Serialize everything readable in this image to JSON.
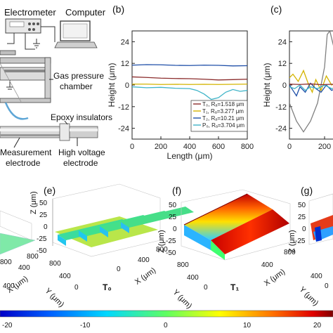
{
  "schematic": {
    "electrometer": "Electrometer",
    "computer": "Computer",
    "gas_chamber_line1": "Gas pressure",
    "gas_chamber_line2": "chamber",
    "epoxy": "Epoxy insulators",
    "measurement_line1": "Measurement",
    "measurement_line2": "electrode",
    "hv_line1": "High voltage",
    "hv_line2": "electrode"
  },
  "panel_labels": {
    "b": "(b)",
    "c": "(c)",
    "e": "(e)",
    "f": "(f)",
    "g": "(g)"
  },
  "chart_data": [
    {
      "type": "line",
      "panel": "(b)",
      "xlabel": "Length (μm)",
      "ylabel": "Height (μm)",
      "xlim": [
        0,
        800
      ],
      "ylim": [
        -30,
        30
      ],
      "xticks": [
        0,
        200,
        400,
        600,
        800
      ],
      "yticks": [
        24,
        12,
        0,
        -12,
        -24
      ],
      "grid": false,
      "legend_position": "bottom-right",
      "series": [
        {
          "name": "T₀, Rₐ=1.518 μm",
          "color": "#8b2c2c",
          "x": [
            0,
            100,
            200,
            300,
            400,
            500,
            600,
            700,
            800
          ],
          "y": [
            4.5,
            4.2,
            3.8,
            3.6,
            3.5,
            3.2,
            2.8,
            3.0,
            3.2
          ]
        },
        {
          "name": "T₁, Rₐ=3.277 μm",
          "color": "#d4b400",
          "x": [
            0,
            100,
            200,
            300,
            400,
            500,
            600,
            700,
            800
          ],
          "y": [
            0.5,
            0.5,
            0.3,
            0.4,
            0.3,
            0.4,
            0.3,
            0.4,
            0.5
          ]
        },
        {
          "name": "T₂, Rₐ=10.21 μm",
          "color": "#1f4fa8",
          "x": [
            0,
            100,
            200,
            300,
            400,
            500,
            600,
            700,
            800
          ],
          "y": [
            11,
            11.3,
            11.2,
            10.9,
            10.8,
            11,
            10.9,
            10.6,
            10.7
          ]
        },
        {
          "name": "P₀, Rₐ=3.704 μm",
          "color": "#3fb4c8",
          "x": [
            0,
            100,
            200,
            300,
            400,
            450,
            500,
            550,
            600,
            650,
            700,
            750,
            800
          ],
          "y": [
            -1,
            -1.5,
            -1.3,
            -1.8,
            -2,
            -3,
            -5,
            -8,
            -7,
            -4,
            -2.5,
            -3.5,
            -3
          ]
        }
      ]
    },
    {
      "type": "line",
      "panel": "(c)",
      "ylabel": "Height (μm)",
      "xlim": [
        0,
        280
      ],
      "ylim": [
        -30,
        30
      ],
      "xticks": [
        0,
        200
      ],
      "yticks": [
        24,
        12,
        0,
        -12,
        -24
      ],
      "series": [
        {
          "color": "#808080",
          "x": [
            0,
            40,
            80,
            120,
            160,
            200,
            215,
            230,
            250,
            280
          ],
          "y": [
            -10,
            -20,
            -26,
            -20,
            -10,
            10,
            28,
            30,
            22,
            18
          ]
        },
        {
          "color": "#d4b400",
          "x": [
            0,
            20,
            50,
            80,
            110,
            130,
            150,
            180,
            210,
            240,
            280
          ],
          "y": [
            4,
            6,
            2,
            8,
            0,
            -4,
            3,
            -3,
            5,
            0,
            2
          ]
        },
        {
          "color": "#1f4fa8",
          "x": [
            0,
            20,
            40,
            60,
            90,
            120,
            150,
            180,
            210,
            240,
            280
          ],
          "y": [
            0,
            -3,
            -6,
            -1,
            -4,
            1,
            -2,
            -4,
            0,
            -3,
            -1
          ]
        },
        {
          "color": "#3fb4c8",
          "x": [
            0,
            30,
            60,
            90,
            120,
            160,
            200,
            240,
            280
          ],
          "y": [
            -1,
            -2,
            0,
            -3,
            -1,
            -2,
            0,
            -2,
            -1
          ]
        },
        {
          "color": "#8b2c2c",
          "x": [
            0,
            60,
            120,
            180,
            240,
            280
          ],
          "y": [
            0.5,
            0.3,
            0.6,
            0.2,
            0.4,
            0.3
          ]
        }
      ]
    },
    {
      "type": "heatmap",
      "panel": "colorbar",
      "tick_labels": [
        "-20",
        "-10",
        "0",
        "10",
        "20"
      ],
      "range": [
        -24,
        24
      ],
      "colors": [
        "#0000c8",
        "#0078ff",
        "#00e0ff",
        "#60ff60",
        "#ffff00",
        "#ff8000",
        "#e00000",
        "#800000"
      ]
    }
  ],
  "surfaces": {
    "e": {
      "label": "T₀",
      "z_ticks": [
        "50",
        "25",
        "0",
        "-25",
        "-50"
      ],
      "z_label": "Z (μm)",
      "y_ticks": [
        "800",
        "400",
        "0"
      ],
      "y_label": "Y (μm)",
      "x_ticks": [
        "0",
        "400",
        "800"
      ],
      "x_label": "X (μm)"
    },
    "f": {
      "label": "T₁",
      "z_ticks": [
        "50",
        "25",
        "0",
        "-25",
        "-50"
      ],
      "z_label": "Z (μm)",
      "y_ticks": [
        "800",
        "400",
        "0"
      ],
      "y_label": "Y (μm)",
      "x_ticks": [
        "400",
        "800"
      ],
      "x_label": "X (μm)"
    },
    "g": {
      "z_ticks": [
        "50",
        "25",
        "0",
        "-25"
      ],
      "z_label": "Z (μm)",
      "y_ticks": [
        "400",
        "0"
      ],
      "y_label": "Y (μm)"
    },
    "d": {
      "y_ticks": [
        "800",
        "400"
      ],
      "x_ticks": [
        "400",
        "800"
      ],
      "x_label": "X (μm)"
    }
  }
}
